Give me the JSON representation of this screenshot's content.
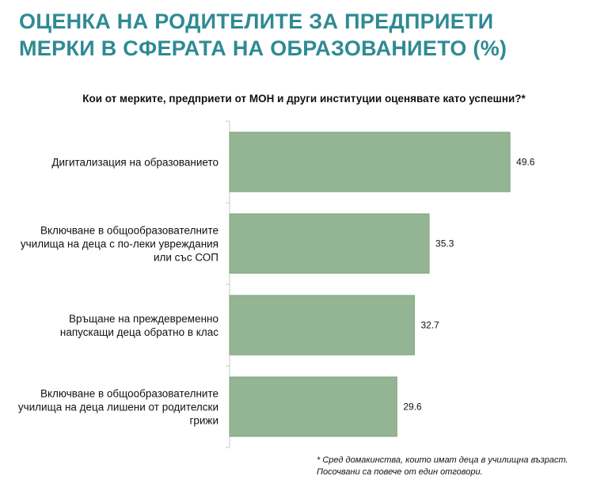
{
  "header": {
    "title_line1": "ОЦЕНКА НА РОДИТЕЛИТЕ ЗА ПРЕДПРИЕТИ",
    "title_line2": "МЕРКИ В СФЕРАТА НА ОБРАЗОВАНИЕТО (%)"
  },
  "chart_data": {
    "type": "bar",
    "orientation": "horizontal",
    "title": "Кои от мерките, предприети от МОН и други институции оценявате като успешни?*",
    "categories": [
      [
        "Дигитализация на образованието"
      ],
      [
        "Включване в общообразователните",
        "училища на деца с по-леки увреждания",
        "или със СОП"
      ],
      [
        "Връщане на преждевременно",
        "напускащи деца обратно в клас"
      ],
      [
        "Включване в общообразователните",
        "училища на деца лишени от родителски",
        "грижи"
      ]
    ],
    "values": [
      49.6,
      35.3,
      32.7,
      29.6
    ],
    "value_labels": [
      "49.6",
      "35.3",
      "32.7",
      "29.6"
    ],
    "xlim": [
      0,
      50
    ],
    "grid": false,
    "bar_color": "#93b593",
    "bar_edge_color": "#7ea27e"
  },
  "footnote": {
    "line1": "* Сред домакинства, които имат деца в училищна възраст.",
    "line2": "Посочвани са повече от един отговори."
  }
}
